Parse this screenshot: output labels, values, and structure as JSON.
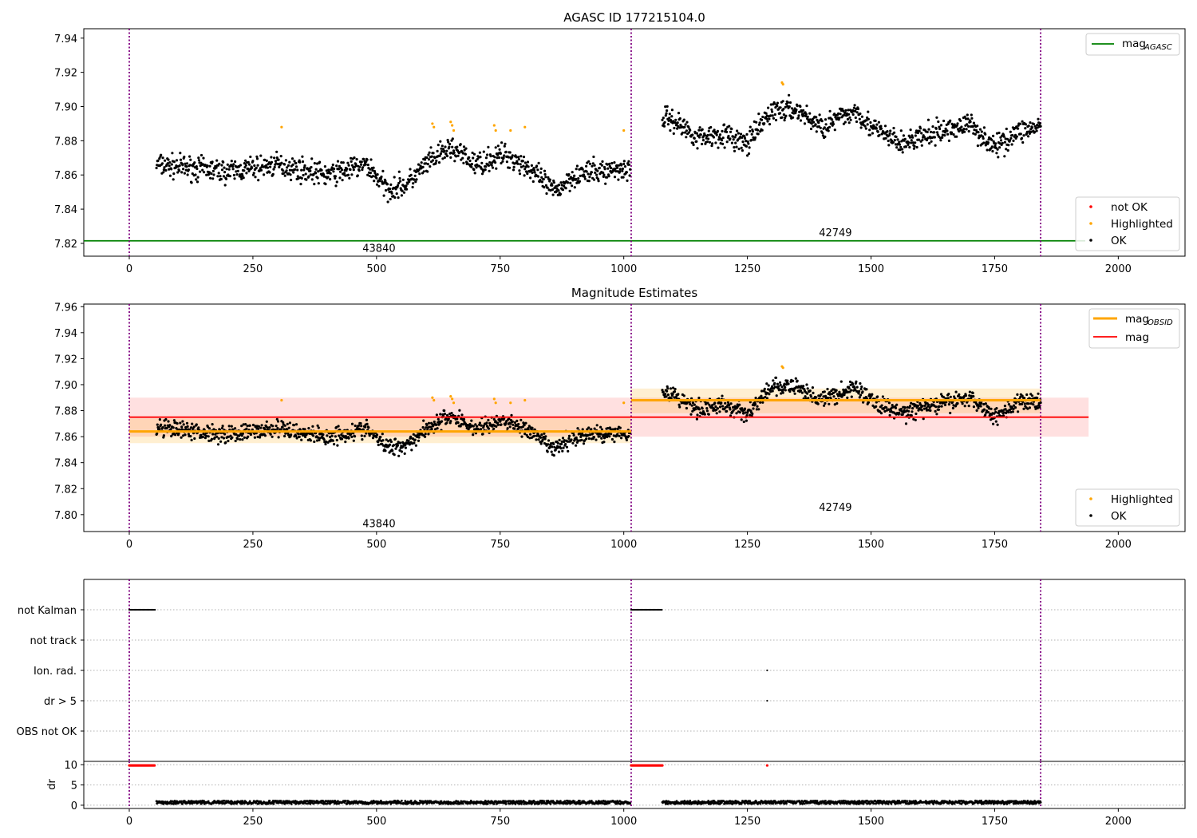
{
  "chart_data": [
    {
      "type": "scatter",
      "title": "AGASC ID 177215104.0",
      "xlim": [
        -92,
        2135
      ],
      "ylim": [
        7.8125,
        7.9455
      ],
      "xticks": [
        0,
        250,
        500,
        750,
        1000,
        1250,
        1500,
        1750,
        2000
      ],
      "yticks": [
        7.82,
        7.84,
        7.86,
        7.88,
        7.9,
        7.92,
        7.94
      ],
      "yticklabels": [
        "7.82",
        "7.84",
        "7.86",
        "7.88",
        "7.90",
        "7.92",
        "7.94"
      ],
      "obs_boundaries": [
        0,
        1015,
        1843
      ],
      "obs_labels": [
        {
          "text": "43840",
          "x": 505,
          "y": 7.8175
        },
        {
          "text": "42749",
          "x": 1428,
          "y": 7.8265
        }
      ],
      "mag_agasc": 7.8215,
      "line_legend": {
        "label": "mag",
        "sub": "AGASC",
        "color": "#008000"
      },
      "marker_legend": [
        {
          "label": "not OK",
          "color": "#ff0000"
        },
        {
          "label": "Highlighted",
          "color": "#ffa500"
        },
        {
          "label": "OK",
          "color": "#000000"
        }
      ],
      "series": [
        {
          "name": "OK",
          "segments": [
            {
              "x": [
                55,
                200,
                300,
                400,
                480,
                520,
                560,
                600,
                650,
                700,
                760,
                800,
                860,
                900,
                1000,
                1013
              ],
              "y": [
                7.866,
                7.862,
                7.866,
                7.86,
                7.866,
                7.852,
                7.854,
                7.866,
                7.876,
                7.866,
                7.872,
                7.866,
                7.85,
                7.86,
                7.864,
                7.862
              ]
            },
            {
              "x": [
                1078,
                1100,
                1150,
                1200,
                1250,
                1300,
                1350,
                1400,
                1470,
                1500,
                1560,
                1600,
                1650,
                1700,
                1750,
                1800,
                1843
              ],
              "y": [
                7.894,
                7.892,
                7.882,
                7.884,
                7.878,
                7.898,
                7.898,
                7.888,
                7.898,
                7.888,
                7.878,
                7.882,
                7.886,
                7.89,
                7.876,
                7.886,
                7.888
              ]
            }
          ],
          "spread": 0.006,
          "color": "#000000"
        },
        {
          "name": "Highlighted",
          "x": [
            308,
            613,
            616,
            650,
            653,
            656,
            738,
            741,
            771,
            800,
            1000,
            1320,
            1322
          ],
          "y": [
            7.888,
            7.89,
            7.888,
            7.891,
            7.889,
            7.886,
            7.889,
            7.886,
            7.886,
            7.888,
            7.886,
            7.914,
            7.913
          ],
          "color": "#ffa500"
        }
      ]
    },
    {
      "type": "scatter",
      "title": "Magnitude Estimates",
      "xlim": [
        -92,
        2135
      ],
      "ylim": [
        7.787,
        7.962
      ],
      "xticks": [
        0,
        250,
        500,
        750,
        1000,
        1250,
        1500,
        1750,
        2000
      ],
      "yticks": [
        7.8,
        7.82,
        7.84,
        7.86,
        7.88,
        7.9,
        7.92,
        7.94,
        7.96
      ],
      "yticklabels": [
        "7.80",
        "7.82",
        "7.84",
        "7.86",
        "7.88",
        "7.90",
        "7.92",
        "7.94",
        "7.96"
      ],
      "obs_boundaries": [
        0,
        1015,
        1843
      ],
      "obs_labels": [
        {
          "text": "43840",
          "x": 505,
          "y": 7.7935
        },
        {
          "text": "42749",
          "x": 1428,
          "y": 7.806
        }
      ],
      "mag_obsid": [
        {
          "x0": 0,
          "x1": 1015,
          "y": 7.864,
          "band": [
            7.855,
            7.874
          ]
        },
        {
          "x0": 1015,
          "x1": 1843,
          "y": 7.888,
          "band": [
            7.878,
            7.897
          ]
        }
      ],
      "mag": {
        "x0": 0,
        "x1": 1940,
        "y": 7.875,
        "band": [
          7.86,
          7.89
        ]
      },
      "line_legend": [
        {
          "label": "mag",
          "sub": "OBSID",
          "color": "#ffa500"
        },
        {
          "label": "mag",
          "sub": "",
          "color": "#ff0000"
        }
      ],
      "marker_legend": [
        {
          "label": "Highlighted",
          "color": "#ffa500"
        },
        {
          "label": "OK",
          "color": "#000000"
        }
      ]
    },
    {
      "type": "scatter",
      "xlim": [
        -92,
        2135
      ],
      "flag_rows": [
        "not Kalman",
        "not track",
        "Ion. rad.",
        "dr > 5",
        "OBS not OK"
      ],
      "flags": [
        {
          "row": "not Kalman",
          "x": [
            [
              0,
              52
            ],
            [
              1015,
              1078
            ]
          ]
        },
        {
          "row": "Ion. rad.",
          "x": [
            [
              1290,
              1290
            ]
          ]
        },
        {
          "row": "dr > 5",
          "x": [
            [
              1290,
              1290
            ]
          ]
        }
      ]
    },
    {
      "type": "scatter",
      "ylabel": "dr",
      "xlim": [
        -92,
        2135
      ],
      "ylim": [
        -0.8,
        10.8
      ],
      "yticks": [
        0,
        5,
        10
      ],
      "xticks": [
        0,
        250,
        500,
        750,
        1000,
        1250,
        1500,
        1750,
        2000
      ],
      "obs_boundaries": [
        0,
        1015,
        1843
      ],
      "red_points": [
        [
          0,
          52
        ],
        [
          1015,
          1078
        ],
        [
          1290,
          1290
        ]
      ],
      "red_value": 9.8,
      "baseline": {
        "mean": 0.7,
        "spread": 0.4
      }
    }
  ]
}
